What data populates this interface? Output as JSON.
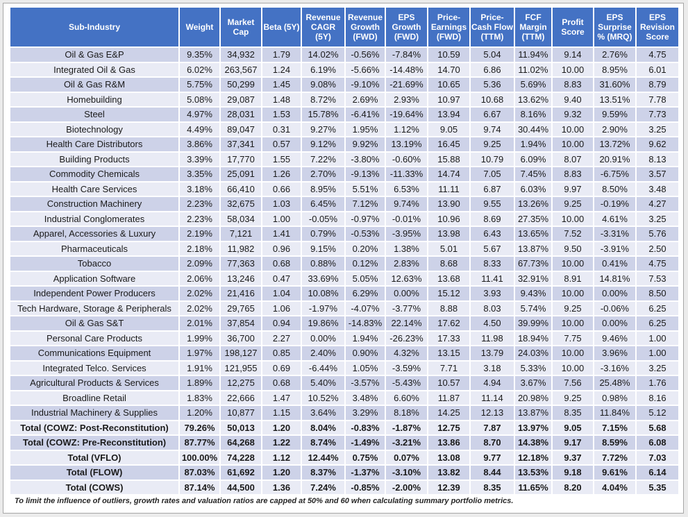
{
  "footnote": "To limit the influence of outliers, growth rates and valuation ratios are capped at 50% and 60 when calculating summary portfolio metrics.",
  "colors": {
    "header_bg": "#4472C4",
    "header_text": "#FFFFFF",
    "band_dark": "#CDD2E8",
    "band_light": "#E9EBF5",
    "gridline": "#FFFFFF",
    "page_bg": "#FFFFFF",
    "page_border": "#A6A6A6",
    "canvas_bg": "#EBEBEB"
  },
  "chart_data": {
    "type": "table",
    "title": "",
    "legend_position": "none",
    "total_rows_start": 25,
    "columns": [
      "Sub-Industry",
      "Weight",
      "Market Cap",
      "Beta (5Y)",
      "Revenue CAGR (5Y)",
      "Revenue Growth (FWD)",
      "EPS Growth (FWD)",
      "Price-Earnings (FWD)",
      "Price-Cash Flow (TTM)",
      "FCF Margin (TTM)",
      "Profit Score",
      "EPS Surprise % (MRQ)",
      "EPS Revision Score"
    ],
    "rows": [
      [
        "Oil & Gas E&P",
        "9.35%",
        "34,932",
        "1.79",
        "14.02%",
        "-0.56%",
        "-7.84%",
        "10.59",
        "5.04",
        "11.94%",
        "9.14",
        "2.76%",
        "4.75"
      ],
      [
        "Integrated Oil & Gas",
        "6.02%",
        "263,567",
        "1.24",
        "6.19%",
        "-5.66%",
        "-14.48%",
        "14.70",
        "6.86",
        "11.02%",
        "10.00",
        "8.95%",
        "6.01"
      ],
      [
        "Oil & Gas R&M",
        "5.75%",
        "50,299",
        "1.45",
        "9.08%",
        "-9.10%",
        "-21.69%",
        "10.65",
        "5.36",
        "5.69%",
        "8.83",
        "31.60%",
        "8.79"
      ],
      [
        "Homebuilding",
        "5.08%",
        "29,087",
        "1.48",
        "8.72%",
        "2.69%",
        "2.93%",
        "10.97",
        "10.68",
        "13.62%",
        "9.40",
        "13.51%",
        "7.78"
      ],
      [
        "Steel",
        "4.97%",
        "28,031",
        "1.53",
        "15.78%",
        "-6.41%",
        "-19.64%",
        "13.94",
        "6.67",
        "8.16%",
        "9.32",
        "9.59%",
        "7.73"
      ],
      [
        "Biotechnology",
        "4.49%",
        "89,047",
        "0.31",
        "9.27%",
        "1.95%",
        "1.12%",
        "9.05",
        "9.74",
        "30.44%",
        "10.00",
        "2.90%",
        "3.25"
      ],
      [
        "Health Care Distributors",
        "3.86%",
        "37,341",
        "0.57",
        "9.12%",
        "9.92%",
        "13.19%",
        "16.45",
        "9.25",
        "1.94%",
        "10.00",
        "13.72%",
        "9.62"
      ],
      [
        "Building Products",
        "3.39%",
        "17,770",
        "1.55",
        "7.22%",
        "-3.80%",
        "-0.60%",
        "15.88",
        "10.79",
        "6.09%",
        "8.07",
        "20.91%",
        "8.13"
      ],
      [
        "Commodity Chemicals",
        "3.35%",
        "25,091",
        "1.26",
        "2.70%",
        "-9.13%",
        "-11.33%",
        "14.74",
        "7.05",
        "7.45%",
        "8.83",
        "-6.75%",
        "3.57"
      ],
      [
        "Health Care Services",
        "3.18%",
        "66,410",
        "0.66",
        "8.95%",
        "5.51%",
        "6.53%",
        "11.11",
        "6.87",
        "6.03%",
        "9.97",
        "8.50%",
        "3.48"
      ],
      [
        "Construction Machinery",
        "2.23%",
        "32,675",
        "1.03",
        "6.45%",
        "7.12%",
        "9.74%",
        "13.90",
        "9.55",
        "13.26%",
        "9.25",
        "-0.19%",
        "4.27"
      ],
      [
        "Industrial Conglomerates",
        "2.23%",
        "58,034",
        "1.00",
        "-0.05%",
        "-0.97%",
        "-0.01%",
        "10.96",
        "8.69",
        "27.35%",
        "10.00",
        "4.61%",
        "3.25"
      ],
      [
        "Apparel, Accessories & Luxury",
        "2.19%",
        "7,121",
        "1.41",
        "0.79%",
        "-0.53%",
        "-3.95%",
        "13.98",
        "6.43",
        "13.65%",
        "7.52",
        "-3.31%",
        "5.76"
      ],
      [
        "Pharmaceuticals",
        "2.18%",
        "11,982",
        "0.96",
        "9.15%",
        "0.20%",
        "1.38%",
        "5.01",
        "5.67",
        "13.87%",
        "9.50",
        "-3.91%",
        "2.50"
      ],
      [
        "Tobacco",
        "2.09%",
        "77,363",
        "0.68",
        "0.88%",
        "0.12%",
        "2.83%",
        "8.68",
        "8.33",
        "67.73%",
        "10.00",
        "0.41%",
        "4.75"
      ],
      [
        "Application Software",
        "2.06%",
        "13,246",
        "0.47",
        "33.69%",
        "5.05%",
        "12.63%",
        "13.68",
        "11.41",
        "32.91%",
        "8.91",
        "14.81%",
        "7.53"
      ],
      [
        "Independent Power Producers",
        "2.02%",
        "21,416",
        "1.04",
        "10.08%",
        "6.29%",
        "0.00%",
        "15.12",
        "3.93",
        "9.43%",
        "10.00",
        "0.00%",
        "8.50"
      ],
      [
        "Tech Hardware, Storage & Peripherals",
        "2.02%",
        "29,765",
        "1.06",
        "-1.97%",
        "-4.07%",
        "-3.77%",
        "8.88",
        "8.03",
        "5.74%",
        "9.25",
        "-0.06%",
        "6.25"
      ],
      [
        "Oil & Gas S&T",
        "2.01%",
        "37,854",
        "0.94",
        "19.86%",
        "-14.83%",
        "22.14%",
        "17.62",
        "4.50",
        "39.99%",
        "10.00",
        "0.00%",
        "6.25"
      ],
      [
        "Personal Care Products",
        "1.99%",
        "36,700",
        "2.27",
        "0.00%",
        "1.94%",
        "-26.23%",
        "17.33",
        "11.98",
        "18.94%",
        "7.75",
        "9.46%",
        "1.00"
      ],
      [
        "Communications Equipment",
        "1.97%",
        "198,127",
        "0.85",
        "2.40%",
        "0.90%",
        "4.32%",
        "13.15",
        "13.79",
        "24.03%",
        "10.00",
        "3.96%",
        "1.00"
      ],
      [
        "Integrated Telco. Services",
        "1.91%",
        "121,955",
        "0.69",
        "-6.44%",
        "1.05%",
        "-3.59%",
        "7.71",
        "3.18",
        "5.33%",
        "10.00",
        "-3.16%",
        "3.25"
      ],
      [
        "Agricultural Products & Services",
        "1.89%",
        "12,275",
        "0.68",
        "5.40%",
        "-3.57%",
        "-5.43%",
        "10.57",
        "4.94",
        "3.67%",
        "7.56",
        "25.48%",
        "1.76"
      ],
      [
        "Broadline Retail",
        "1.83%",
        "22,666",
        "1.47",
        "10.52%",
        "3.48%",
        "6.60%",
        "11.87",
        "11.14",
        "20.98%",
        "9.25",
        "0.98%",
        "8.16"
      ],
      [
        "Industrial Machinery & Supplies",
        "1.20%",
        "10,877",
        "1.15",
        "3.64%",
        "3.29%",
        "8.18%",
        "14.25",
        "12.13",
        "13.87%",
        "8.35",
        "11.84%",
        "5.12"
      ],
      [
        "Total (COWZ: Post-Reconstitution)",
        "79.26%",
        "50,013",
        "1.20",
        "8.04%",
        "-0.83%",
        "-1.87%",
        "12.75",
        "7.87",
        "13.97%",
        "9.05",
        "7.15%",
        "5.68"
      ],
      [
        "Total (COWZ: Pre-Reconstitution)",
        "87.77%",
        "64,268",
        "1.22",
        "8.74%",
        "-1.49%",
        "-3.21%",
        "13.86",
        "8.70",
        "14.38%",
        "9.17",
        "8.59%",
        "6.08"
      ],
      [
        "Total (VFLO)",
        "100.00%",
        "74,228",
        "1.12",
        "12.44%",
        "0.75%",
        "0.07%",
        "13.08",
        "9.77",
        "12.18%",
        "9.37",
        "7.72%",
        "7.03"
      ],
      [
        "Total (FLOW)",
        "87.03%",
        "61,692",
        "1.20",
        "8.37%",
        "-1.37%",
        "-3.10%",
        "13.82",
        "8.44",
        "13.53%",
        "9.18",
        "9.61%",
        "6.14"
      ],
      [
        "Total (COWS)",
        "87.14%",
        "44,500",
        "1.36",
        "7.24%",
        "-0.85%",
        "-2.00%",
        "12.39",
        "8.35",
        "11.65%",
        "8.20",
        "4.04%",
        "5.35"
      ]
    ]
  }
}
